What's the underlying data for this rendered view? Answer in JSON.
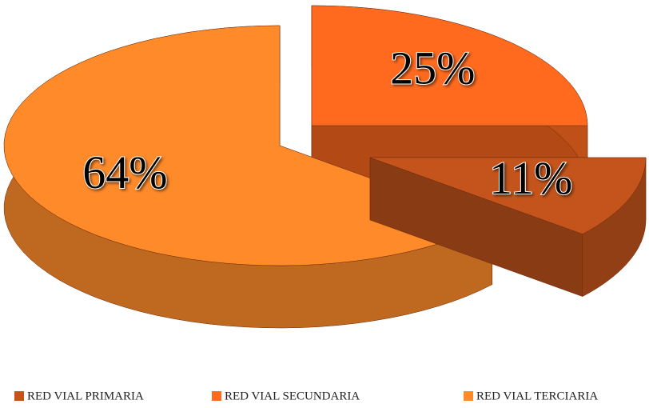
{
  "chart_data": {
    "type": "pie3d",
    "categories": [
      "RED VIAL PRIMARIA",
      "RED VIAL SECUNDARIA",
      "RED VIAL TERCIARIA"
    ],
    "values": [
      11,
      25,
      64
    ],
    "value_labels": [
      "11%",
      "25%",
      "64%"
    ],
    "colors": [
      "#c4541c",
      "#ff6a1e",
      "#ff8a2a"
    ],
    "legend": "bottom"
  }
}
